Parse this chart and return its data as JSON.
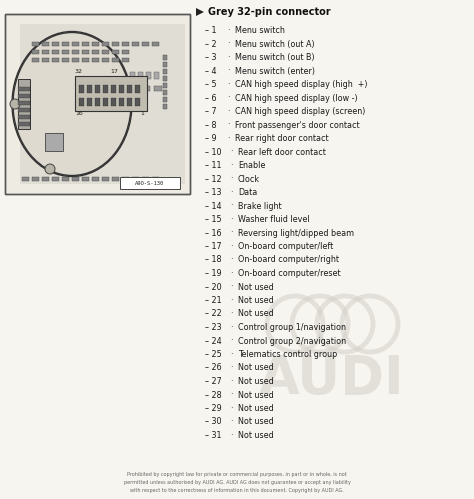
{
  "title": "Grey 32-pin connector",
  "pins": [
    {
      "num": 1,
      "desc": "Menu switch"
    },
    {
      "num": 2,
      "desc": "Menu switch (out A)"
    },
    {
      "num": 3,
      "desc": "Menu switch (out B)"
    },
    {
      "num": 4,
      "desc": "Menu switch (enter)"
    },
    {
      "num": 5,
      "desc": "CAN high speed display (high  +)"
    },
    {
      "num": 6,
      "desc": "CAN high speed display (low -)"
    },
    {
      "num": 7,
      "desc": "CAN high speed display (screen)"
    },
    {
      "num": 8,
      "desc": "Front passenger's door contact"
    },
    {
      "num": 9,
      "desc": "Rear right door contact"
    },
    {
      "num": 10,
      "desc": "Rear left door contact"
    },
    {
      "num": 11,
      "desc": "Enable"
    },
    {
      "num": 12,
      "desc": "Clock"
    },
    {
      "num": 13,
      "desc": "Data"
    },
    {
      "num": 14,
      "desc": "Brake light"
    },
    {
      "num": 15,
      "desc": "Washer fluid level"
    },
    {
      "num": 16,
      "desc": "Reversing light/dipped beam"
    },
    {
      "num": 17,
      "desc": "On-board computer/left"
    },
    {
      "num": 18,
      "desc": "On-board computer/right"
    },
    {
      "num": 19,
      "desc": "On-board computer/reset"
    },
    {
      "num": 20,
      "desc": "Not used"
    },
    {
      "num": 21,
      "desc": "Not used"
    },
    {
      "num": 22,
      "desc": "Not used"
    },
    {
      "num": 23,
      "desc": "Control group 1/navigation"
    },
    {
      "num": 24,
      "desc": "Control group 2/navigation"
    },
    {
      "num": 25,
      "desc": "Telematics control group"
    },
    {
      "num": 26,
      "desc": "Not used"
    },
    {
      "num": 27,
      "desc": "Not used"
    },
    {
      "num": 28,
      "desc": "Not used"
    },
    {
      "num": 29,
      "desc": "Not used"
    },
    {
      "num": 30,
      "desc": "Not used"
    },
    {
      "num": 31,
      "desc": "Not used"
    }
  ],
  "footer_lines": [
    "Prohibited by copyright law for private or commercial purposes, in part or in whole, is not",
    "permitted unless authorised by AUDI AG. AUDI AG does not guarantee or accept any liability",
    "with respect to the correctness of information in this document. Copyright by AUDI AG."
  ],
  "bg_color": "#f7f5f0",
  "text_color": "#1a1a1a",
  "title_color": "#111111",
  "footer_color": "#666666",
  "watermark_color": "#d4cfc8",
  "diagram_label": "A9O-S-130",
  "fig_width": 4.74,
  "fig_height": 4.99,
  "dpi": 100
}
